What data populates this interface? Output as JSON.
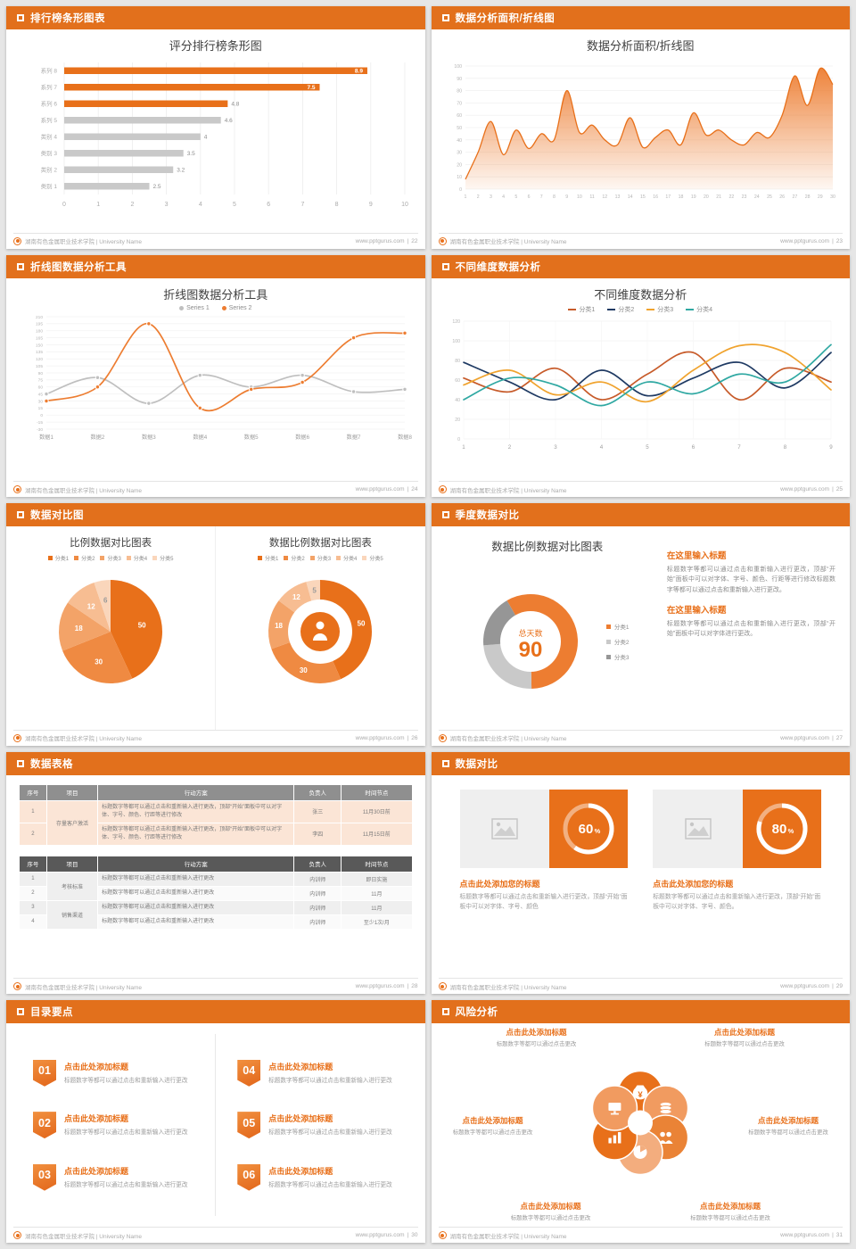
{
  "accent": "#E8701A",
  "footer": {
    "school": "湖南有色金属职业技术学院 | University Name",
    "site": "www.pptgurus.com",
    "sep": "|"
  },
  "slides": [
    {
      "page": "22",
      "header": "排行榜条形图表"
    },
    {
      "page": "23",
      "header": "数据分析面积/折线图"
    },
    {
      "page": "24",
      "header": "折线图数据分析工具"
    },
    {
      "page": "25",
      "header": "不同维度数据分析"
    },
    {
      "page": "26",
      "header": "数据对比图"
    },
    {
      "page": "27",
      "header": "季度数据对比",
      "blocks": [
        {
          "title": "在这里输入标题",
          "body": "标题数字等都可以通过点击和重新输入进行更改，顶部“开始”面板中可以对字体、字号、颜色、行距等进行修改标题数字等都可以通过点击和重新输入进行更改。"
        },
        {
          "title": "在这里输入标题",
          "body": "标题数字等都可以通过点击和重新输入进行更改，顶部“开始”面板中可以对字体进行更改。"
        }
      ]
    },
    {
      "page": "28",
      "header": "数据表格",
      "tables": [
        {
          "cls": "t1",
          "widths": [
            "7%",
            "13%",
            "50%",
            "12%",
            "18%"
          ],
          "header": [
            "序号",
            "项目",
            "行动方案",
            "负责人",
            "时间节点"
          ],
          "rows": [
            [
              {
                "t": "1"
              },
              {
                "t": "存量客户激活",
                "rs": 2
              },
              {
                "t": "标题数字等都可以通过点击和重新输入进行更改，顶部“开始”面板中可以对字体、字号、颜色、行距等进行修改",
                "cls": "plan"
              },
              {
                "t": "张三"
              },
              {
                "t": "11月30日前"
              }
            ],
            [
              {
                "t": "2"
              },
              {
                "t": "标题数字等都可以通过点击和重新输入进行更改，顶部“开始”面板中可以对字体、字号、颜色、行距等进行修改",
                "cls": "plan"
              },
              {
                "t": "李四"
              },
              {
                "t": "11月15日前"
              }
            ]
          ]
        },
        {
          "cls": "t2",
          "widths": [
            "7%",
            "13%",
            "50%",
            "12%",
            "18%"
          ],
          "header": [
            "序号",
            "项目",
            "行动方案",
            "负责人",
            "时间节点"
          ],
          "rows": [
            [
              {
                "t": "1"
              },
              {
                "t": "考核标准",
                "rs": 2
              },
              {
                "t": "标题数字等都可以通过点击和重新输入进行更改",
                "cls": "plan"
              },
              {
                "t": "内训师"
              },
              {
                "t": "即日实施"
              }
            ],
            [
              {
                "t": "2"
              },
              {
                "t": "标题数字等都可以通过点击和重新输入进行更改",
                "cls": "plan"
              },
              {
                "t": "内训师"
              },
              {
                "t": "11月"
              }
            ],
            [
              {
                "t": "3"
              },
              {
                "t": "销售渠道",
                "rs": 2
              },
              {
                "t": "标题数字等都可以通过点击和重新输入进行更改",
                "cls": "plan"
              },
              {
                "t": "内训师"
              },
              {
                "t": "11月"
              }
            ],
            [
              {
                "t": "4"
              },
              {
                "t": "标题数字等都可以通过点击和重新输入进行更改",
                "cls": "plan"
              },
              {
                "t": "内训师"
              },
              {
                "t": "至少1次/月"
              }
            ]
          ]
        }
      ]
    },
    {
      "page": "29",
      "header": "数据对比",
      "cards": [
        {
          "title": "点击此处添加您的标题",
          "body": "标题数字等都可以通过点击和重新输入进行更改，顶部“开始”面板中可以对字体、字号、颜色"
        },
        {
          "title": "点击此处添加您的标题",
          "body": "标题数字等都可以通过点击和重新输入进行更改，顶部“开始”面板中可以对字体、字号、颜色。"
        }
      ]
    },
    {
      "page": "30",
      "header": "目录要点",
      "items": [
        {
          "num": "01",
          "title": "点击此处添加标题",
          "body": "标题数字等都可以通过点击和重新输入进行更改"
        },
        {
          "num": "02",
          "title": "点击此处添加标题",
          "body": "标题数字等都可以通过点击和重新输入进行更改"
        },
        {
          "num": "03",
          "title": "点击此处添加标题",
          "body": "标题数字等都可以通过点击和重新输入进行更改"
        },
        {
          "num": "04",
          "title": "点击此处添加标题",
          "body": "标题数字等都可以通过点击和重新输入进行更改"
        },
        {
          "num": "05",
          "title": "点击此处添加标题",
          "body": "标题数字等都可以通过点击和重新输入进行更改"
        },
        {
          "num": "06",
          "title": "点击此处添加标题",
          "body": "标题数字等都可以通过点击和重新输入进行更改"
        }
      ]
    },
    {
      "page": "31",
      "header": "风险分析",
      "labels": [
        {
          "title": "点击此处添加标题",
          "body": "标题数字等都可以通过点击更改"
        },
        {
          "title": "点击此处添加标题",
          "body": "标题数字等都可以通过点击更改"
        },
        {
          "title": "点击此处添加标题",
          "body": "标题数字等都可以通过点击更改"
        },
        {
          "title": "点击此处添加标题",
          "body": "标题数字等都可以通过点击更改"
        },
        {
          "title": "点击此处添加标题",
          "body": "标题数字等都可以通过点击更改"
        },
        {
          "title": "点击此处添加标题",
          "body": "标题数字等都可以通过点击更改"
        }
      ],
      "petal_icons": [
        "money-bag-icon",
        "coins-icon",
        "people-icon",
        "pie-icon",
        "chart-icon",
        "monitor-icon"
      ]
    }
  ],
  "chart_data": [
    {
      "id": "ranking-bar",
      "type": "bar",
      "title": "评分排行榜条形图",
      "categories": [
        "系列 8",
        "系列 7",
        "系列 6",
        "系列 5",
        "类别 4",
        "类别 3",
        "类别 2",
        "类别 1"
      ],
      "values": [
        8.9,
        7.5,
        4.8,
        4.6,
        4,
        3.5,
        3.2,
        2.5
      ],
      "highlight_count": 3,
      "bar_color": "#E8701A",
      "muted_color": "#C9C9C9",
      "xlim": [
        0,
        10
      ],
      "xlabel": "",
      "ylabel": ""
    },
    {
      "id": "area-trend",
      "type": "area",
      "title": "数据分析面积/折线图",
      "x": [
        1,
        2,
        3,
        4,
        5,
        6,
        7,
        8,
        9,
        10,
        11,
        12,
        13,
        14,
        15,
        16,
        17,
        18,
        19,
        20,
        21,
        22,
        23,
        24,
        25,
        26,
        27,
        28,
        29,
        30
      ],
      "values": [
        8,
        30,
        55,
        28,
        48,
        33,
        45,
        40,
        80,
        46,
        52,
        40,
        36,
        58,
        34,
        42,
        48,
        36,
        62,
        44,
        48,
        40,
        36,
        46,
        42,
        60,
        92,
        68,
        98,
        85
      ],
      "ylim": [
        0,
        100
      ],
      "color": "#ED7D31"
    },
    {
      "id": "dual-line",
      "type": "line",
      "title": "折线图数据分析工具",
      "categories": [
        "数据1",
        "数据2",
        "数据3",
        "数据4",
        "数据5",
        "数据6",
        "数据7",
        "数据8"
      ],
      "ylim": [
        -30,
        210
      ],
      "ystep": 15,
      "legend_position": "top",
      "series": [
        {
          "name": "Series 1",
          "color": "#BFBFBF",
          "values": [
            45,
            80,
            25,
            85,
            60,
            85,
            50,
            55
          ]
        },
        {
          "name": "Series 2",
          "color": "#ED7D31",
          "values": [
            30,
            60,
            195,
            15,
            55,
            70,
            165,
            175
          ]
        }
      ]
    },
    {
      "id": "dimension-lines",
      "type": "line",
      "title": "不同维度数据分析",
      "x": [
        1,
        2,
        3,
        4,
        5,
        6,
        7,
        8,
        9
      ],
      "ylim": [
        0,
        120
      ],
      "ystep": 20,
      "legend_position": "top",
      "series": [
        {
          "name": "分类1",
          "color": "#C75B2A",
          "values": [
            62,
            48,
            72,
            40,
            66,
            88,
            40,
            72,
            58
          ]
        },
        {
          "name": "分类2",
          "color": "#1F3A63",
          "values": [
            78,
            58,
            40,
            70,
            44,
            62,
            78,
            52,
            88
          ]
        },
        {
          "name": "分类3",
          "color": "#F0A32E",
          "values": [
            55,
            70,
            45,
            58,
            38,
            70,
            95,
            88,
            50
          ]
        },
        {
          "name": "分类4",
          "color": "#2FA8A2",
          "values": [
            40,
            62,
            55,
            34,
            58,
            46,
            66,
            58,
            96
          ]
        }
      ]
    },
    {
      "id": "ratio-pie",
      "type": "pie",
      "title": "比例数据对比图表",
      "labels": [
        "分类1",
        "分类2",
        "分类3",
        "分类4",
        "分类5"
      ],
      "values": [
        50,
        30,
        18,
        12,
        6
      ],
      "colors": [
        "#E8701A",
        "#EF8A42",
        "#F3A368",
        "#F7BD92",
        "#FAD6BB"
      ]
    },
    {
      "id": "ratio-donut",
      "type": "pie",
      "title": "数据比例数据对比图表",
      "labels": [
        "分类1",
        "分类2",
        "分类3",
        "分类4",
        "分类5"
      ],
      "values": [
        50,
        30,
        18,
        12,
        5
      ],
      "colors": [
        "#E8701A",
        "#EF8A42",
        "#F3A368",
        "#F7BD92",
        "#FAD6BB"
      ],
      "donut": true,
      "center_icon": "presenter-icon"
    },
    {
      "id": "days-donut",
      "type": "pie",
      "title": "数据比例数据对比图表",
      "labels": [
        "分类1",
        "分类2",
        "分类3"
      ],
      "values": [
        58,
        24,
        18
      ],
      "colors": [
        "#ED7D31",
        "#C9C9C9",
        "#969696"
      ],
      "donut": true,
      "center_label": "总天数",
      "center_value": "90"
    },
    {
      "id": "progress-rings",
      "type": "donut",
      "values": [
        60,
        80
      ],
      "unit": "%"
    }
  ]
}
